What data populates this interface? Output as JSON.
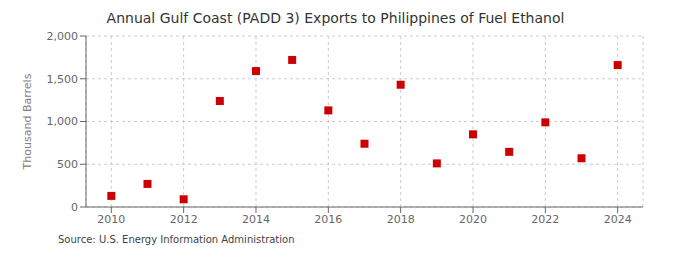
{
  "chart_data": {
    "type": "scatter",
    "title": "Annual Gulf Coast (PADD 3) Exports to Philippines of Fuel Ethanol",
    "ylabel": "Thousand Barrels",
    "annotations": [
      "Source: U.S. Energy Information Administration"
    ],
    "x": [
      2010,
      2011,
      2012,
      2013,
      2014,
      2015,
      2016,
      2017,
      2018,
      2019,
      2020,
      2021,
      2022,
      2023,
      2024
    ],
    "values": [
      130,
      270,
      90,
      1240,
      1590,
      1720,
      1130,
      740,
      1430,
      510,
      850,
      645,
      990,
      570,
      1660
    ],
    "color": "#cc0000",
    "marker": "square",
    "xlim": [
      2009.3,
      2024.7
    ],
    "xticks": [
      2010,
      2012,
      2014,
      2016,
      2018,
      2020,
      2022,
      2024
    ],
    "ylim": [
      0,
      2000
    ],
    "yticks": [
      0,
      500,
      {
        "value": 1000,
        "label": "1,000"
      },
      {
        "value": 1500,
        "label": "1,500"
      },
      {
        "value": 2000,
        "label": "2,000"
      }
    ],
    "grid": true
  }
}
